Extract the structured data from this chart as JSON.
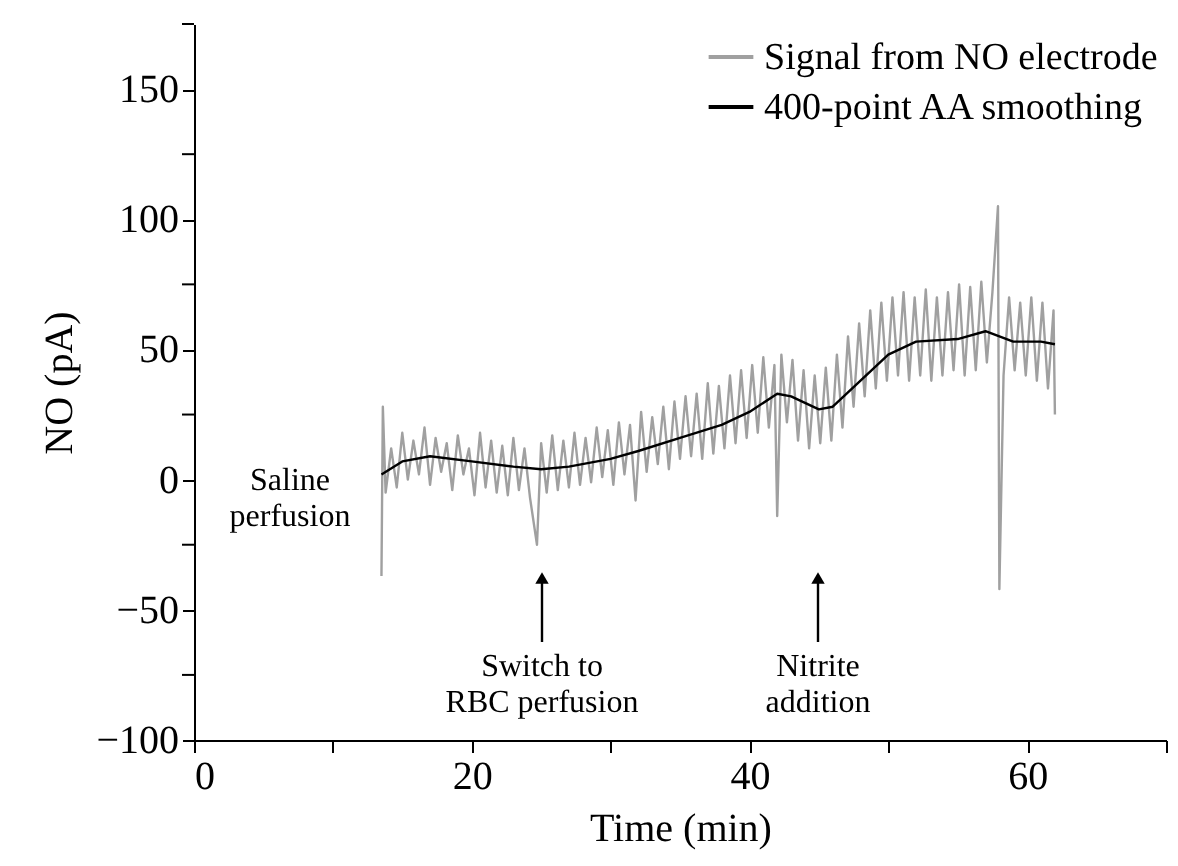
{
  "chart_data": {
    "type": "line",
    "xlabel": "Time (min)",
    "ylabel": "NO (pA)",
    "xlim": [
      0,
      70
    ],
    "ylim": [
      -100,
      175
    ],
    "xticks": [
      0,
      {
        "value": 10,
        "label": null
      },
      20,
      {
        "value": 30,
        "label": null
      },
      40,
      {
        "value": 50,
        "label": null
      },
      60,
      {
        "value": 70,
        "label": null
      }
    ],
    "yticks": [
      -100,
      {
        "value": -75,
        "label": null
      },
      -50,
      {
        "value": -25,
        "label": null
      },
      0,
      {
        "value": 25,
        "label": null
      },
      50,
      {
        "value": 75,
        "label": null
      },
      100,
      {
        "value": 125,
        "label": null
      },
      150,
      {
        "value": 175,
        "label": null
      }
    ],
    "grid": false,
    "legend": "top right",
    "marker": "none",
    "line_style": "solid",
    "annotations": [
      "Saline\nperfusion",
      "Switch to\nRBC perfusion",
      "Nitrite\naddition"
    ],
    "series": [
      {
        "name": "Signal from NO electrode",
        "color": "#a0a0a0",
        "x": [
          13.5,
          13.6,
          13.8,
          14.2,
          14.6,
          15.0,
          15.4,
          15.8,
          16.2,
          16.6,
          17.0,
          17.4,
          17.8,
          18.2,
          18.6,
          19.0,
          19.4,
          19.8,
          20.2,
          20.6,
          21.0,
          21.4,
          21.8,
          22.2,
          22.6,
          23.0,
          23.4,
          23.8,
          24.2,
          24.7,
          25.0,
          25.4,
          25.8,
          26.2,
          26.6,
          27.0,
          27.4,
          27.8,
          28.2,
          28.6,
          29.0,
          29.4,
          29.8,
          30.2,
          30.6,
          31.0,
          31.4,
          31.8,
          32.2,
          32.6,
          33.0,
          33.4,
          33.8,
          34.2,
          34.6,
          35.0,
          35.4,
          35.8,
          36.2,
          36.6,
          37.0,
          37.4,
          37.8,
          38.2,
          38.6,
          39.0,
          39.4,
          39.8,
          40.2,
          40.6,
          41.0,
          41.4,
          41.8,
          42.0,
          42.3,
          42.7,
          43.1,
          43.5,
          43.9,
          44.3,
          44.7,
          45.1,
          45.5,
          45.9,
          46.3,
          46.7,
          47.1,
          47.5,
          47.9,
          48.3,
          48.7,
          49.1,
          49.5,
          49.9,
          50.3,
          50.7,
          51.1,
          51.5,
          51.9,
          52.3,
          52.7,
          53.1,
          53.5,
          53.9,
          54.3,
          54.7,
          55.1,
          55.5,
          55.9,
          56.3,
          56.7,
          57.1,
          57.5,
          57.9,
          58.0,
          58.3,
          58.7,
          59.1,
          59.5,
          59.9,
          60.3,
          60.7,
          61.1,
          61.5,
          61.9,
          62.0
        ],
        "values": [
          -37,
          28,
          -5,
          12,
          -3,
          18,
          0,
          15,
          2,
          20,
          -2,
          16,
          3,
          14,
          -4,
          17,
          2,
          12,
          -6,
          18,
          -3,
          15,
          -5,
          13,
          -6,
          16,
          -4,
          12,
          -7,
          -25,
          14,
          -5,
          17,
          -4,
          15,
          -3,
          18,
          -2,
          16,
          -1,
          20,
          1,
          19,
          -2,
          22,
          2,
          21,
          -8,
          26,
          3,
          24,
          6,
          28,
          4,
          30,
          8,
          32,
          9,
          33,
          8,
          37,
          10,
          36,
          12,
          40,
          14,
          42,
          16,
          44,
          18,
          47,
          20,
          44,
          -14,
          48,
          22,
          46,
          15,
          42,
          12,
          40,
          14,
          43,
          15,
          48,
          20,
          55,
          28,
          60,
          32,
          65,
          35,
          68,
          38,
          70,
          40,
          72,
          38,
          70,
          40,
          73,
          38,
          70,
          40,
          72,
          42,
          75,
          40,
          74,
          42,
          76,
          45,
          72,
          105,
          -42,
          40,
          70,
          42,
          68,
          40,
          70,
          38,
          68,
          35,
          65,
          25
        ]
      },
      {
        "name": "400-point AA smoothing",
        "color": "#000000",
        "x": [
          13.5,
          15,
          17,
          20,
          23,
          25,
          27,
          30,
          32,
          35,
          38,
          40,
          42,
          43,
          45,
          46,
          48,
          50,
          52,
          55,
          57,
          59,
          61,
          62
        ],
        "values": [
          2,
          7,
          9,
          7,
          5,
          4,
          5,
          8,
          11,
          16,
          21,
          26,
          33,
          32,
          27,
          28,
          38,
          48,
          53,
          54,
          57,
          53,
          53,
          52
        ]
      }
    ]
  }
}
